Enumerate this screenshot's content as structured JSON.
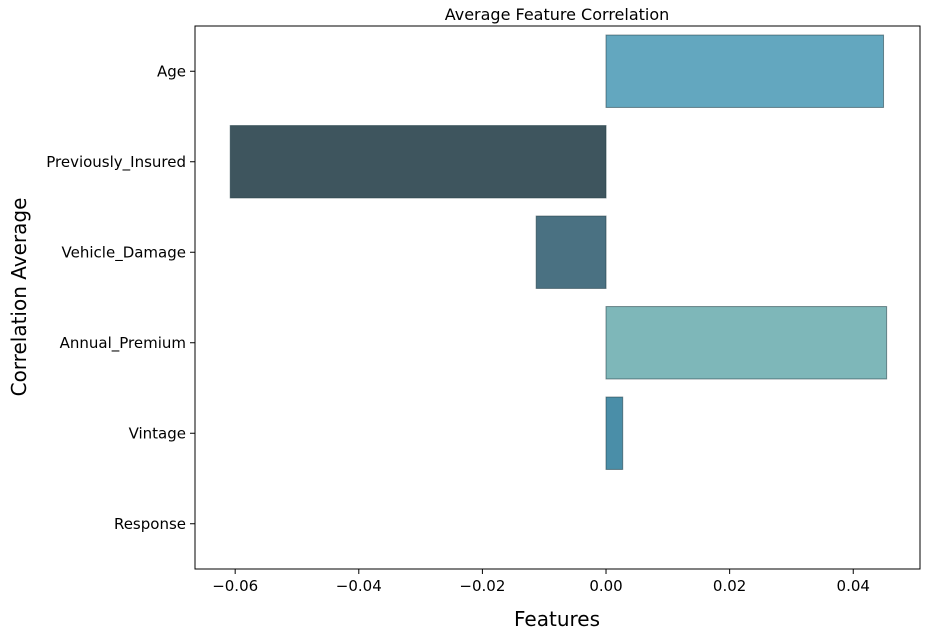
{
  "chart_data": {
    "type": "bar",
    "orientation": "horizontal",
    "title": "Average Feature Correlation",
    "xlabel": "Features",
    "ylabel": "Correlation Average",
    "categories": [
      "Age",
      "Previously_Insured",
      "Vehicle_Damage",
      "Annual_Premium",
      "Vintage",
      "Response"
    ],
    "values": [
      0.0449,
      -0.0608,
      -0.0113,
      0.0454,
      0.0027,
      0.0
    ],
    "colors": [
      "#63a7bf",
      "#3e555e",
      "#4a7182",
      "#7eb7b9",
      "#4a8ea8",
      "#5a9fb5"
    ],
    "xlim": [
      -0.0665,
      0.0508
    ],
    "xticks": [
      -0.06,
      -0.04,
      -0.02,
      0.0,
      0.02,
      0.04
    ],
    "xtick_labels": [
      "−0.06",
      "−0.04",
      "−0.02",
      "0.00",
      "0.02",
      "0.04"
    ],
    "grid": false,
    "legend": "none"
  }
}
